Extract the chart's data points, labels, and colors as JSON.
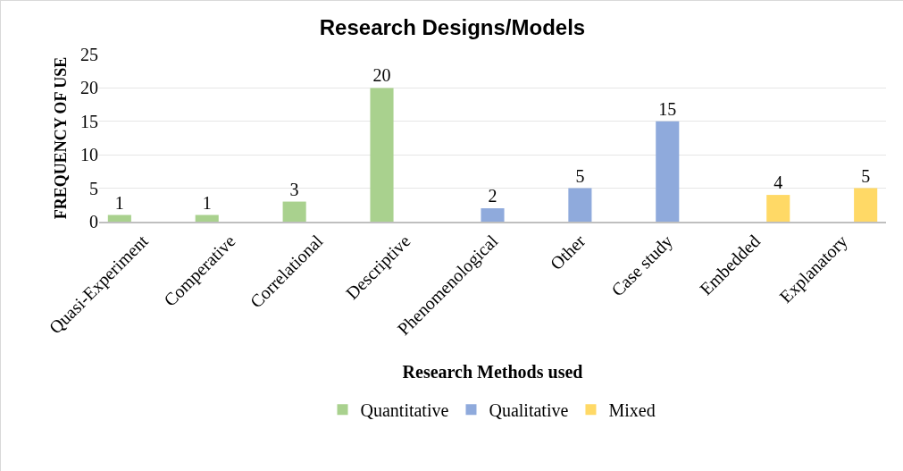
{
  "chart_data": {
    "type": "bar",
    "title": "Research Designs/Models",
    "xlabel": "Research Methods used",
    "ylabel": "FREQUENCY OF USE",
    "categories": [
      "Quasi-Experiment",
      "Comperative",
      "Correlational",
      "Descriptive",
      "Phenomenological",
      "Other",
      "Case study",
      "Embedded",
      "Explanatory"
    ],
    "series": [
      {
        "name": "Quantitative",
        "color": "#a9d18e",
        "values": [
          1,
          1,
          3,
          20,
          null,
          null,
          null,
          null,
          null
        ]
      },
      {
        "name": "Qualitative",
        "color": "#8faadc",
        "values": [
          null,
          null,
          null,
          null,
          2,
          5,
          15,
          null,
          null
        ]
      },
      {
        "name": "Mixed",
        "color": "#ffd966",
        "values": [
          null,
          null,
          null,
          null,
          null,
          null,
          null,
          4,
          5
        ]
      }
    ],
    "ylim": [
      0,
      25
    ],
    "yticks": [
      0,
      5,
      10,
      15,
      20,
      25
    ],
    "grid": "y",
    "legend": "bottom",
    "data_labels": true
  }
}
